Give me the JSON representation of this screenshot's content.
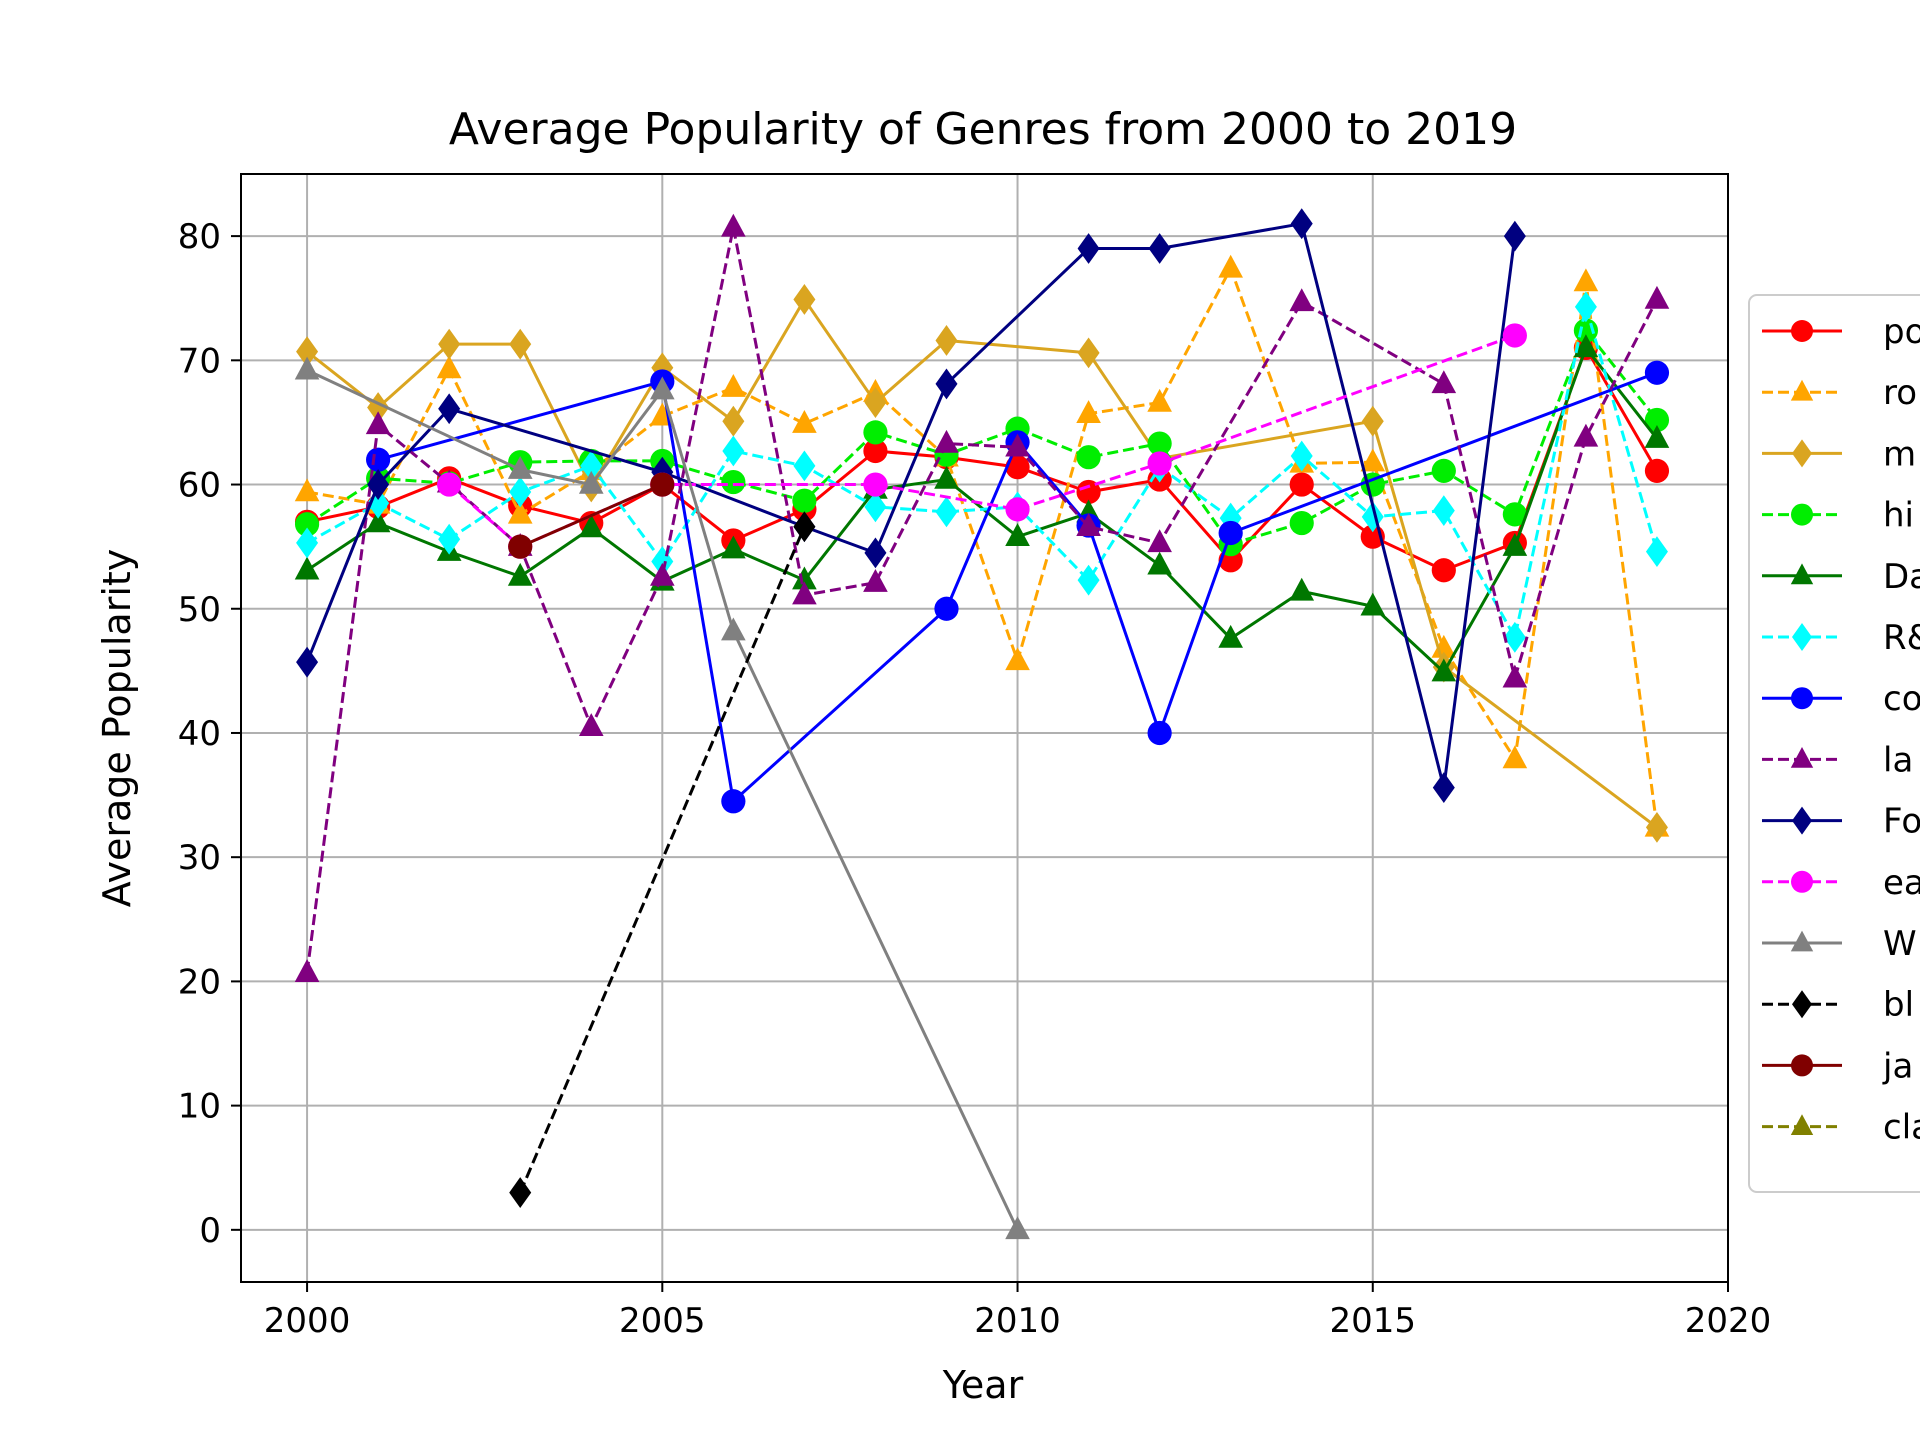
{
  "chart_data": {
    "type": "line",
    "title": "Average Popularity of Genres from 2000 to 2019",
    "xlabel": "Year",
    "ylabel": "Average Popularity",
    "xlim": [
      1999.07,
      2020
    ],
    "ylim": [
      -4.2,
      85
    ],
    "xticks": [
      "2000",
      "2005",
      "2010",
      "2015",
      "2020"
    ],
    "yticks": [
      "0",
      "10",
      "20",
      "30",
      "40",
      "50",
      "60",
      "70",
      "80"
    ],
    "grid": true,
    "legend_position": "right (partially cropped)",
    "series": [
      {
        "name": "po",
        "color": "#ff0000",
        "dashed": false,
        "marker": "circle",
        "points": [
          [
            2000,
            57
          ],
          [
            2001,
            58.2
          ],
          [
            2002,
            60.5
          ],
          [
            2003,
            58.3
          ],
          [
            2004,
            56.9
          ],
          [
            2005,
            60
          ],
          [
            2006,
            55.5
          ],
          [
            2007,
            58
          ],
          [
            2008,
            62.7
          ],
          [
            2009,
            62.2
          ],
          [
            2010,
            61.4
          ],
          [
            2011,
            59.4
          ],
          [
            2012,
            60.4
          ],
          [
            2013,
            53.9
          ],
          [
            2014,
            60
          ],
          [
            2015,
            55.8
          ],
          [
            2016,
            53.1
          ],
          [
            2017,
            55.3
          ],
          [
            2018,
            71
          ],
          [
            2019,
            61.1
          ]
        ]
      },
      {
        "name": "ro",
        "color": "#ffa500",
        "dashed": true,
        "marker": "triangle",
        "points": [
          [
            2000,
            59.4
          ],
          [
            2001,
            58.4
          ],
          [
            2002,
            69.3
          ],
          [
            2003,
            57.6
          ],
          [
            2004,
            61.1
          ],
          [
            2005,
            65.5
          ],
          [
            2006,
            67.8
          ],
          [
            2007,
            64.9
          ],
          [
            2008,
            67.4
          ],
          [
            2009,
            62.2
          ],
          [
            2010,
            45.8
          ],
          [
            2011,
            65.7
          ],
          [
            2012,
            66.6
          ],
          [
            2013,
            77.4
          ],
          [
            2014,
            61.7
          ],
          [
            2015,
            61.8
          ],
          [
            2016,
            46.8
          ],
          [
            2017,
            37.9
          ],
          [
            2018,
            76.3
          ],
          [
            2019,
            32.4
          ]
        ]
      },
      {
        "name": "m",
        "color": "#daa520",
        "dashed": false,
        "marker": "diamond",
        "points": [
          [
            2000,
            70.7
          ],
          [
            2001,
            66.2
          ],
          [
            2002,
            71.3
          ],
          [
            2003,
            71.3
          ],
          [
            2004,
            59.8
          ],
          [
            2005,
            69.4
          ],
          [
            2006,
            65.1
          ],
          [
            2007,
            74.9
          ],
          [
            2008,
            66.6
          ],
          [
            2009,
            71.6
          ],
          [
            2011,
            70.6
          ],
          [
            2012,
            62.1
          ],
          [
            2015,
            65.1
          ],
          [
            2016,
            45.3
          ],
          [
            2019,
            32.4
          ]
        ]
      },
      {
        "name": "hi",
        "color": "#00ee00",
        "dashed": true,
        "marker": "circle",
        "points": [
          [
            2000,
            56.8
          ],
          [
            2001,
            60.5
          ],
          [
            2002,
            60.1
          ],
          [
            2003,
            61.8
          ],
          [
            2004,
            61.9
          ],
          [
            2005,
            61.9
          ],
          [
            2006,
            60.2
          ],
          [
            2007,
            58.7
          ],
          [
            2008,
            64.2
          ],
          [
            2009,
            62.4
          ],
          [
            2010,
            64.5
          ],
          [
            2011,
            62.2
          ],
          [
            2012,
            63.3
          ],
          [
            2013,
            55.2
          ],
          [
            2014,
            56.9
          ],
          [
            2015,
            60
          ],
          [
            2016,
            61.1
          ],
          [
            2017,
            57.6
          ],
          [
            2018,
            72.4
          ],
          [
            2019,
            65.2
          ]
        ]
      },
      {
        "name": "Da",
        "color": "#007700",
        "dashed": false,
        "marker": "triangle",
        "points": [
          [
            2000,
            53.1
          ],
          [
            2001,
            56.9
          ],
          [
            2002,
            54.6
          ],
          [
            2003,
            52.6
          ],
          [
            2004,
            56.5
          ],
          [
            2005,
            52.2
          ],
          [
            2006,
            54.8
          ],
          [
            2007,
            52.3
          ],
          [
            2008,
            59.6
          ],
          [
            2009,
            60.4
          ],
          [
            2010,
            55.8
          ],
          [
            2011,
            57.7
          ],
          [
            2012,
            53.5
          ],
          [
            2013,
            47.6
          ],
          [
            2014,
            51.4
          ],
          [
            2015,
            50.2
          ],
          [
            2016,
            44.9
          ],
          [
            2017,
            55
          ],
          [
            2018,
            71
          ],
          [
            2019,
            63.7
          ]
        ]
      },
      {
        "name": "R&",
        "color": "#00ffff",
        "dashed": true,
        "marker": "diamond",
        "points": [
          [
            2000,
            55.3
          ],
          [
            2001,
            58.5
          ],
          [
            2002,
            55.6
          ],
          [
            2003,
            59.4
          ],
          [
            2004,
            61.5
          ],
          [
            2005,
            53.8
          ],
          [
            2006,
            62.7
          ],
          [
            2007,
            61.5
          ],
          [
            2008,
            58.2
          ],
          [
            2009,
            57.8
          ],
          [
            2010,
            58.2
          ],
          [
            2011,
            52.3
          ],
          [
            2012,
            61.4
          ],
          [
            2013,
            57.3
          ],
          [
            2014,
            62.3
          ],
          [
            2015,
            57.4
          ],
          [
            2016,
            57.9
          ],
          [
            2017,
            47.7
          ],
          [
            2018,
            74.3
          ],
          [
            2019,
            54.6
          ]
        ]
      },
      {
        "name": "co",
        "color": "#0000ff",
        "dashed": false,
        "marker": "circle",
        "points": [
          [
            2001,
            62
          ],
          [
            2005,
            68.3
          ],
          [
            2006,
            34.5
          ],
          [
            2009,
            50
          ],
          [
            2010,
            63.4
          ],
          [
            2011,
            56.7
          ],
          [
            2012,
            40
          ],
          [
            2013,
            56.1
          ],
          [
            2019,
            69
          ]
        ]
      },
      {
        "name": "la",
        "color": "#800080",
        "dashed": true,
        "marker": "triangle",
        "points": [
          [
            2000,
            20.7
          ],
          [
            2001,
            64.8
          ],
          [
            2002,
            60.1
          ],
          [
            2003,
            55
          ],
          [
            2004,
            40.5
          ],
          [
            2005,
            52.6
          ],
          [
            2006,
            80.7
          ],
          [
            2007,
            51.1
          ],
          [
            2008,
            52.1
          ],
          [
            2009,
            63.3
          ],
          [
            2010,
            63
          ],
          [
            2011,
            56.6
          ],
          [
            2012,
            55.3
          ],
          [
            2014,
            74.7
          ],
          [
            2016,
            68.1
          ],
          [
            2017,
            44.4
          ],
          [
            2018,
            63.8
          ],
          [
            2019,
            74.9
          ]
        ]
      },
      {
        "name": "Fo",
        "color": "#000080",
        "dashed": false,
        "marker": "diamond",
        "points": [
          [
            2000,
            45.7
          ],
          [
            2001,
            60
          ],
          [
            2002,
            66.1
          ],
          [
            2005,
            61
          ],
          [
            2007,
            56.6
          ],
          [
            2008,
            54.5
          ],
          [
            2009,
            68.1
          ],
          [
            2011,
            79
          ],
          [
            2012,
            79
          ],
          [
            2014,
            81
          ],
          [
            2016,
            35.6
          ],
          [
            2017,
            80
          ]
        ]
      },
      {
        "name": "ea",
        "color": "#ff00ff",
        "dashed": true,
        "marker": "circle",
        "points": [
          [
            2002,
            60
          ],
          [
            2003,
            55
          ],
          [
            2005,
            60
          ],
          [
            2008,
            60
          ],
          [
            2010,
            58
          ],
          [
            2012,
            61.7
          ],
          [
            2017,
            72
          ]
        ]
      },
      {
        "name": "W",
        "color": "#808080",
        "dashed": false,
        "marker": "triangle",
        "points": [
          [
            2000,
            69.2
          ],
          [
            2003,
            61.2
          ],
          [
            2004,
            60
          ],
          [
            2005,
            67.6
          ],
          [
            2006,
            48.2
          ],
          [
            2010,
            0
          ]
        ]
      },
      {
        "name": "bl",
        "color": "#000000",
        "dashed": true,
        "marker": "diamond",
        "points": [
          [
            2003,
            3
          ],
          [
            2007,
            56.6
          ]
        ]
      },
      {
        "name": "ja",
        "color": "#800000",
        "dashed": false,
        "marker": "circle",
        "points": [
          [
            2003,
            55
          ],
          [
            2005,
            60
          ]
        ]
      },
      {
        "name": "cla",
        "color": "#808000",
        "dashed": true,
        "marker": "triangle",
        "points": []
      }
    ]
  }
}
